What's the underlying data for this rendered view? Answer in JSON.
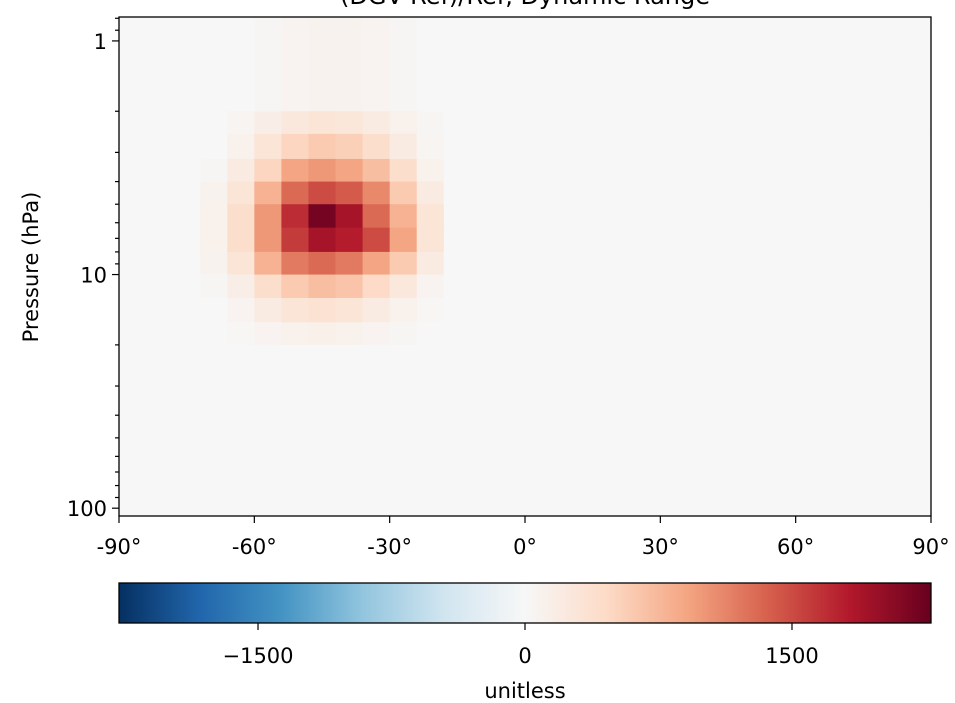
{
  "chart_data": {
    "type": "heatmap",
    "title": "(DGV-Ref)/Ref, Dynamic Range",
    "ylabel": "Pressure (hPa)",
    "colorbar_label": "unitless",
    "x_edges": [
      -90,
      -72,
      -66,
      -60,
      -54,
      -48,
      -42,
      -36,
      -30,
      -24,
      -18,
      90
    ],
    "y_edges": [
      0.79,
      2,
      2.5,
      3.2,
      4,
      5,
      6.3,
      8,
      10,
      12.6,
      16,
      20,
      108
    ],
    "z": [
      [
        0,
        0,
        0,
        30,
        60,
        80,
        80,
        60,
        30,
        0,
        0
      ],
      [
        0,
        0,
        50,
        150,
        250,
        300,
        280,
        200,
        100,
        30,
        0
      ],
      [
        0,
        0,
        100,
        300,
        500,
        600,
        550,
        400,
        200,
        50,
        0
      ],
      [
        0,
        30,
        200,
        500,
        900,
        1000,
        900,
        700,
        400,
        100,
        0
      ],
      [
        0,
        80,
        300,
        800,
        1300,
        1500,
        1400,
        1100,
        600,
        200,
        0
      ],
      [
        0,
        100,
        400,
        1000,
        1700,
        2200,
        1900,
        1300,
        800,
        300,
        0
      ],
      [
        0,
        100,
        400,
        1000,
        1600,
        1900,
        1800,
        1500,
        900,
        300,
        0
      ],
      [
        0,
        80,
        300,
        800,
        1200,
        1300,
        1200,
        900,
        600,
        200,
        0
      ],
      [
        0,
        30,
        150,
        400,
        600,
        700,
        650,
        450,
        250,
        60,
        0
      ],
      [
        0,
        0,
        60,
        200,
        300,
        350,
        300,
        200,
        100,
        20,
        0
      ],
      [
        0,
        0,
        20,
        60,
        100,
        120,
        100,
        60,
        30,
        0,
        0
      ],
      [
        0,
        0,
        0,
        0,
        0,
        0,
        0,
        0,
        0,
        0,
        0
      ]
    ],
    "xlim": [
      -90,
      90
    ],
    "xticks": [
      {
        "value": -90,
        "label": "-90°"
      },
      {
        "value": -60,
        "label": "-60°"
      },
      {
        "value": -30,
        "label": "-30°"
      },
      {
        "value": 0,
        "label": "0°"
      },
      {
        "value": 30,
        "label": "30°"
      },
      {
        "value": 60,
        "label": "60°"
      },
      {
        "value": 90,
        "label": "90°"
      }
    ],
    "ylim": [
      0.79,
      108
    ],
    "yticks": [
      1,
      10,
      100
    ],
    "ylog": true,
    "yinverted": true,
    "clim": [
      -2281,
      2281
    ],
    "cticks": [
      {
        "value": -1500,
        "label": "−1500"
      },
      0,
      1500
    ],
    "colors": [
      "#053061",
      "#2166ac",
      "#4393c3",
      "#92c5de",
      "#d1e5f0",
      "#f7f7f7",
      "#fddbc7",
      "#f4a582",
      "#d6604d",
      "#b2182b",
      "#67001f"
    ]
  }
}
